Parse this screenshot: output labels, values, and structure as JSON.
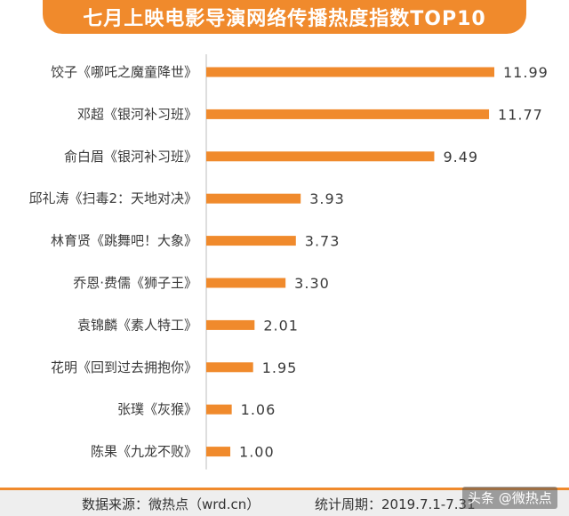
{
  "title": "七月上映电影导演网络传播热度指数TOP10",
  "footer": {
    "source": "数据来源：微热点（wrd.cn）",
    "period": "统计周期：2019.7.1-7.31"
  },
  "watermark": "头条 @微热点",
  "colors": {
    "accent": "#f08a2c",
    "bar": "#f08a2c"
  },
  "chart_data": {
    "type": "bar",
    "orientation": "horizontal",
    "title": "七月上映电影导演网络传播热度指数TOP10",
    "categories": [
      "饺子《哪吒之魔童降世》",
      "邓超《银河补习班》",
      "俞白眉《银河补习班》",
      "邱礼涛《扫毒2：天地对决》",
      "林育贤《跳舞吧！大象》",
      "乔恩·费儒《狮子王》",
      "袁锦麟《素人特工》",
      "花明《回到过去拥抱你》",
      "张璞《灰猴》",
      "陈果《九龙不败》"
    ],
    "values": [
      11.99,
      11.77,
      9.49,
      3.93,
      3.73,
      3.3,
      2.01,
      1.95,
      1.06,
      1.0
    ],
    "value_labels": [
      "11.99",
      "11.77",
      "9.49",
      "3.93",
      "3.73",
      "3.30",
      "2.01",
      "1.95",
      "1.06",
      "1.00"
    ],
    "xlim": [
      0,
      11.99
    ],
    "grid": false,
    "legend": "none"
  }
}
